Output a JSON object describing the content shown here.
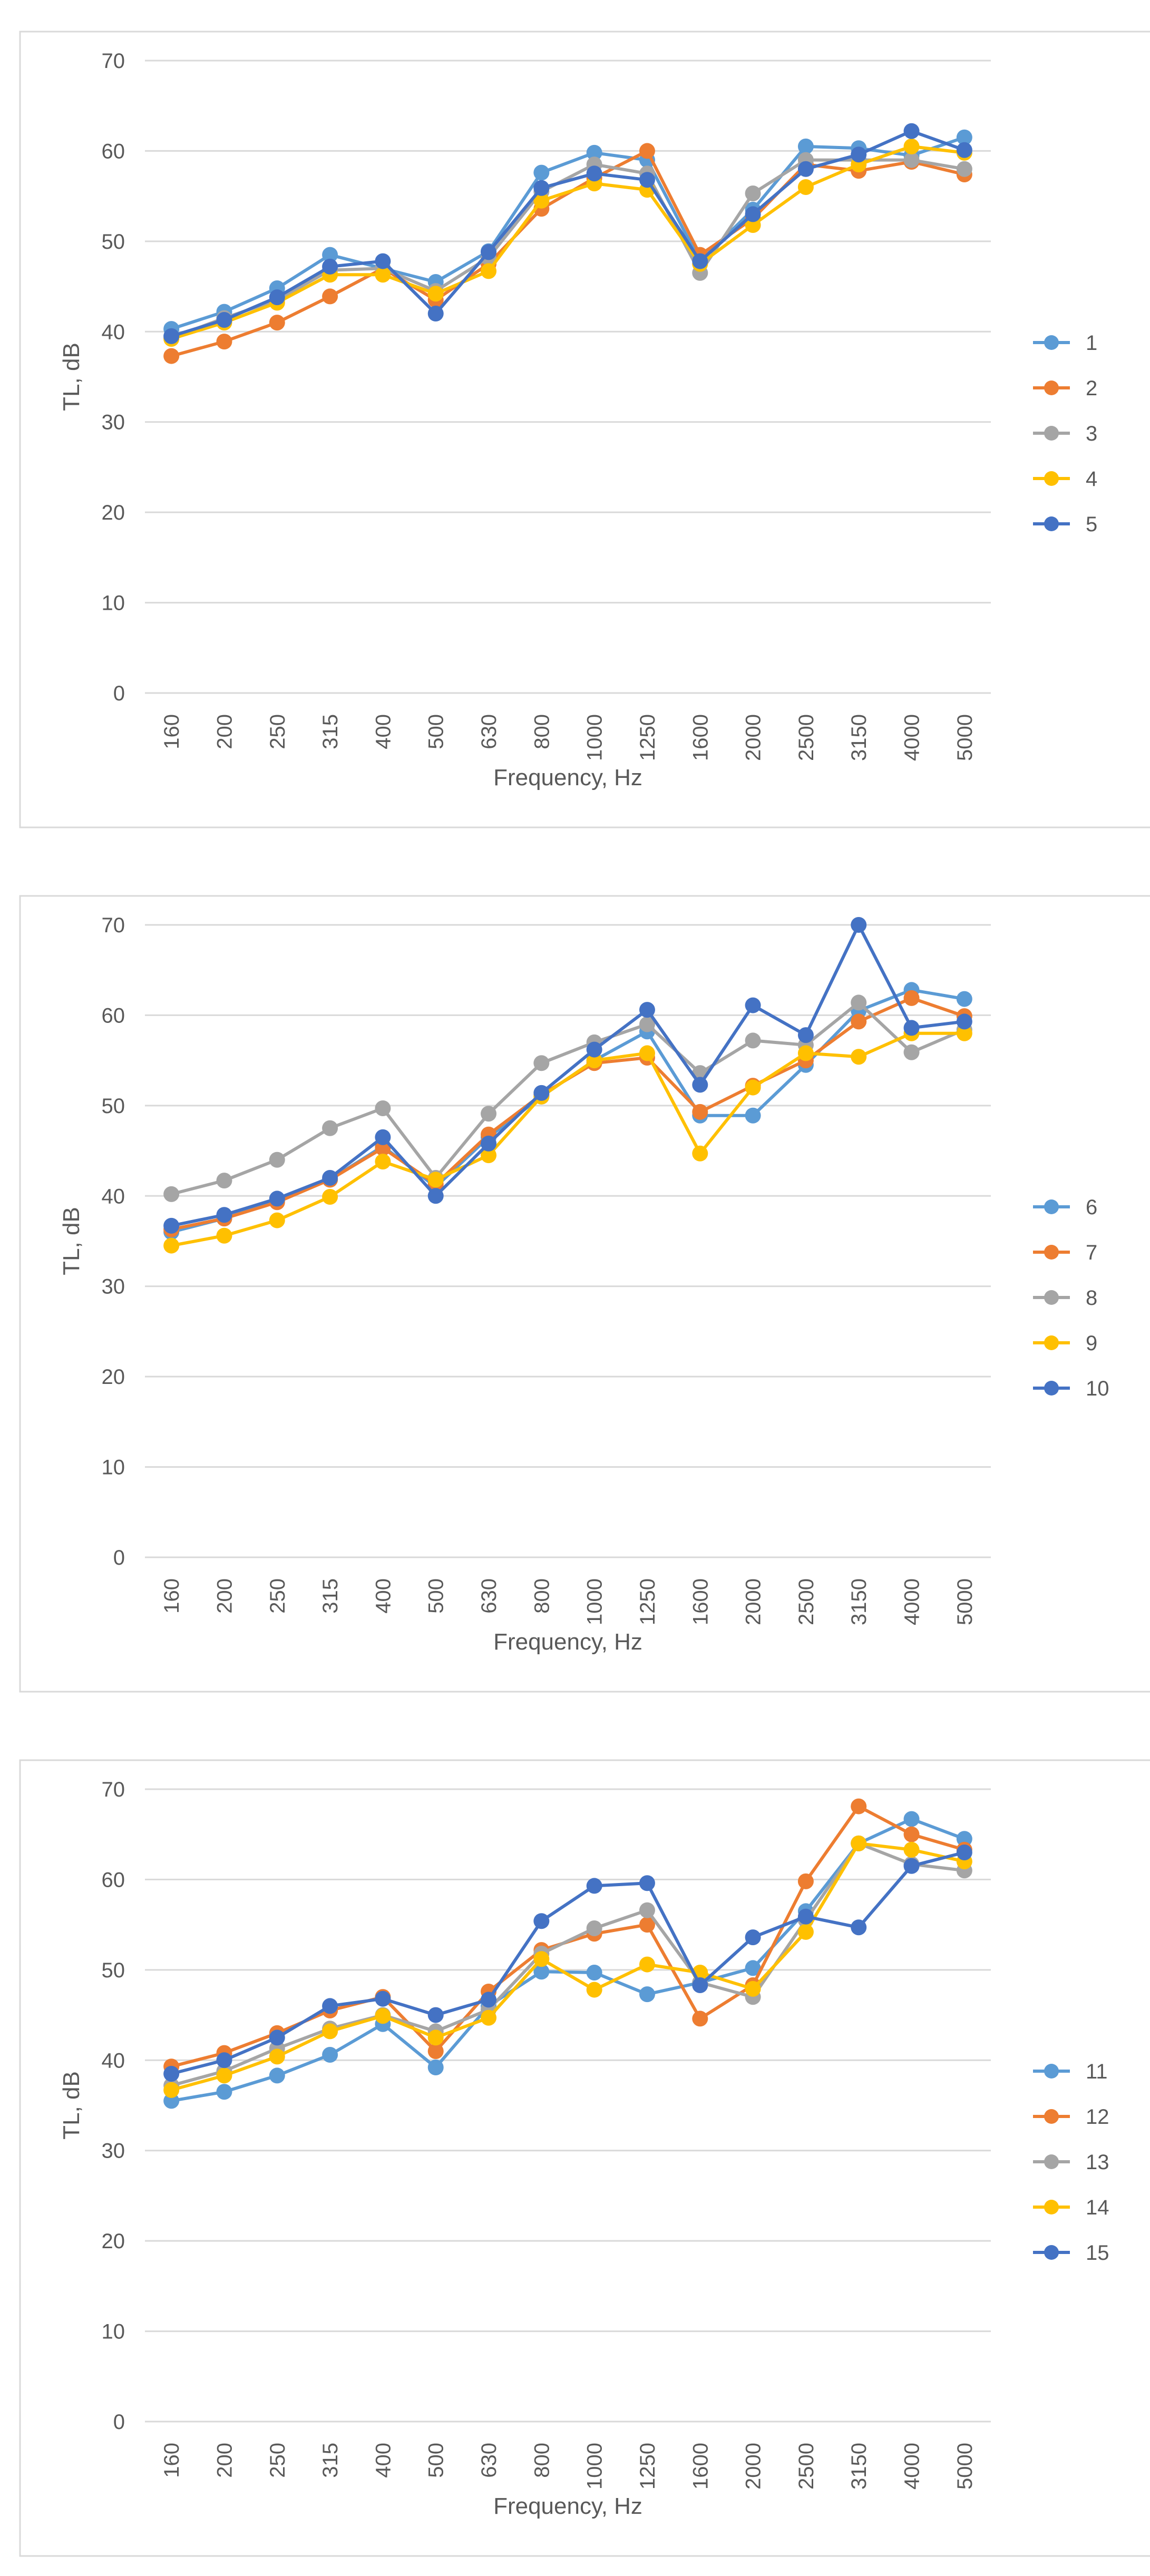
{
  "colors": [
    "#5B9BD5",
    "#ED7D31",
    "#A5A5A5",
    "#FFC000",
    "#4472C4"
  ],
  "chart_data": [
    {
      "type": "line",
      "title": "",
      "xlabel": "Frequency, Hz",
      "ylabel": "TL, dB",
      "ylim": [
        0,
        70
      ],
      "yticks": [
        0,
        10,
        20,
        30,
        40,
        50,
        60,
        70
      ],
      "legend_position": "right",
      "categories": [
        "160",
        "200",
        "250",
        "315",
        "400",
        "500",
        "630",
        "800",
        "1000",
        "1250",
        "1600",
        "2000",
        "2500",
        "3150",
        "4000",
        "5000"
      ],
      "series": [
        {
          "name": "1",
          "values": [
            40.3,
            42.2,
            44.8,
            48.5,
            47.0,
            45.5,
            48.9,
            57.6,
            59.8,
            59.0,
            47.8,
            53.5,
            60.5,
            60.3,
            59.5,
            61.5
          ]
        },
        {
          "name": "2",
          "values": [
            37.3,
            38.9,
            41.0,
            43.9,
            47.0,
            43.5,
            47.5,
            53.6,
            57.0,
            60.0,
            48.5,
            52.5,
            58.5,
            57.8,
            58.8,
            57.4
          ]
        },
        {
          "name": "3",
          "values": [
            39.3,
            41.5,
            43.5,
            46.8,
            47.0,
            44.5,
            48.2,
            55.5,
            58.5,
            57.5,
            46.5,
            55.3,
            59.0,
            59.0,
            59.0,
            58.0
          ]
        },
        {
          "name": "4",
          "values": [
            39.2,
            41.0,
            43.2,
            46.3,
            46.3,
            44.2,
            46.7,
            54.5,
            56.4,
            55.7,
            47.5,
            51.8,
            56.0,
            58.5,
            60.5,
            59.8
          ]
        },
        {
          "name": "5",
          "values": [
            39.5,
            41.3,
            43.8,
            47.2,
            47.8,
            42.0,
            48.8,
            55.9,
            57.5,
            56.8,
            47.8,
            53.0,
            58.0,
            59.6,
            62.2,
            60.1
          ]
        }
      ]
    },
    {
      "type": "line",
      "title": "",
      "xlabel": "Frequency, Hz",
      "ylabel": "TL, dB",
      "ylim": [
        0,
        70
      ],
      "yticks": [
        0,
        10,
        20,
        30,
        40,
        50,
        60,
        70
      ],
      "legend_position": "right",
      "categories": [
        "160",
        "200",
        "250",
        "315",
        "400",
        "500",
        "630",
        "800",
        "1000",
        "1250",
        "1600",
        "2000",
        "2500",
        "3150",
        "4000",
        "5000"
      ],
      "series": [
        {
          "name": "6",
          "values": [
            36.0,
            37.5,
            39.5,
            41.8,
            45.5,
            41.0,
            46.5,
            51.0,
            55.0,
            58.2,
            48.9,
            48.9,
            54.5,
            60.5,
            62.8,
            61.8
          ]
        },
        {
          "name": "7",
          "values": [
            36.3,
            37.5,
            39.3,
            41.8,
            45.3,
            41.3,
            46.8,
            51.2,
            54.7,
            55.3,
            49.3,
            52.2,
            55.0,
            59.3,
            61.9,
            59.9
          ]
        },
        {
          "name": "8",
          "values": [
            40.2,
            41.7,
            44.0,
            47.5,
            49.7,
            42.0,
            49.1,
            54.7,
            57.0,
            59.0,
            53.6,
            57.2,
            56.7,
            61.4,
            55.9,
            58.4
          ]
        },
        {
          "name": "9",
          "values": [
            34.5,
            35.6,
            37.3,
            39.9,
            43.8,
            41.8,
            44.5,
            51.0,
            55.0,
            55.8,
            44.7,
            52.0,
            55.8,
            55.4,
            58.0,
            58.0
          ]
        },
        {
          "name": "10",
          "values": [
            36.7,
            37.9,
            39.7,
            42.0,
            46.5,
            40.0,
            45.8,
            51.4,
            56.2,
            60.6,
            52.3,
            61.1,
            57.8,
            70.0,
            58.6,
            59.3
          ]
        }
      ]
    },
    {
      "type": "line",
      "title": "",
      "xlabel": "Frequency, Hz",
      "ylabel": "TL, dB",
      "ylim": [
        0,
        70
      ],
      "yticks": [
        0,
        10,
        20,
        30,
        40,
        50,
        60,
        70
      ],
      "legend_position": "right",
      "categories": [
        "160",
        "200",
        "250",
        "315",
        "400",
        "500",
        "630",
        "800",
        "1000",
        "1250",
        "1600",
        "2000",
        "2500",
        "3150",
        "4000",
        "5000"
      ],
      "series": [
        {
          "name": "11",
          "values": [
            35.5,
            36.5,
            38.3,
            40.6,
            44.0,
            39.2,
            46.0,
            49.8,
            49.7,
            47.3,
            48.6,
            50.2,
            56.5,
            64.0,
            66.7,
            64.5
          ]
        },
        {
          "name": "12",
          "values": [
            39.3,
            40.8,
            43.0,
            45.5,
            47.0,
            41.0,
            47.6,
            52.2,
            54.0,
            55.0,
            44.6,
            48.3,
            59.8,
            68.1,
            65.0,
            63.3
          ]
        },
        {
          "name": "13",
          "values": [
            37.2,
            38.8,
            41.3,
            43.5,
            45.0,
            43.2,
            45.6,
            51.8,
            54.6,
            56.6,
            48.6,
            47.0,
            55.5,
            64.0,
            61.7,
            61.0
          ]
        },
        {
          "name": "14",
          "values": [
            36.7,
            38.3,
            40.4,
            43.2,
            44.9,
            42.5,
            44.7,
            51.2,
            47.8,
            50.6,
            49.7,
            47.9,
            54.2,
            64.0,
            63.3,
            62.0
          ]
        },
        {
          "name": "15",
          "values": [
            38.5,
            40.0,
            42.5,
            46.0,
            46.8,
            45.0,
            46.7,
            55.4,
            59.3,
            59.6,
            48.3,
            53.6,
            55.9,
            54.7,
            61.5,
            63.0
          ]
        }
      ]
    }
  ]
}
